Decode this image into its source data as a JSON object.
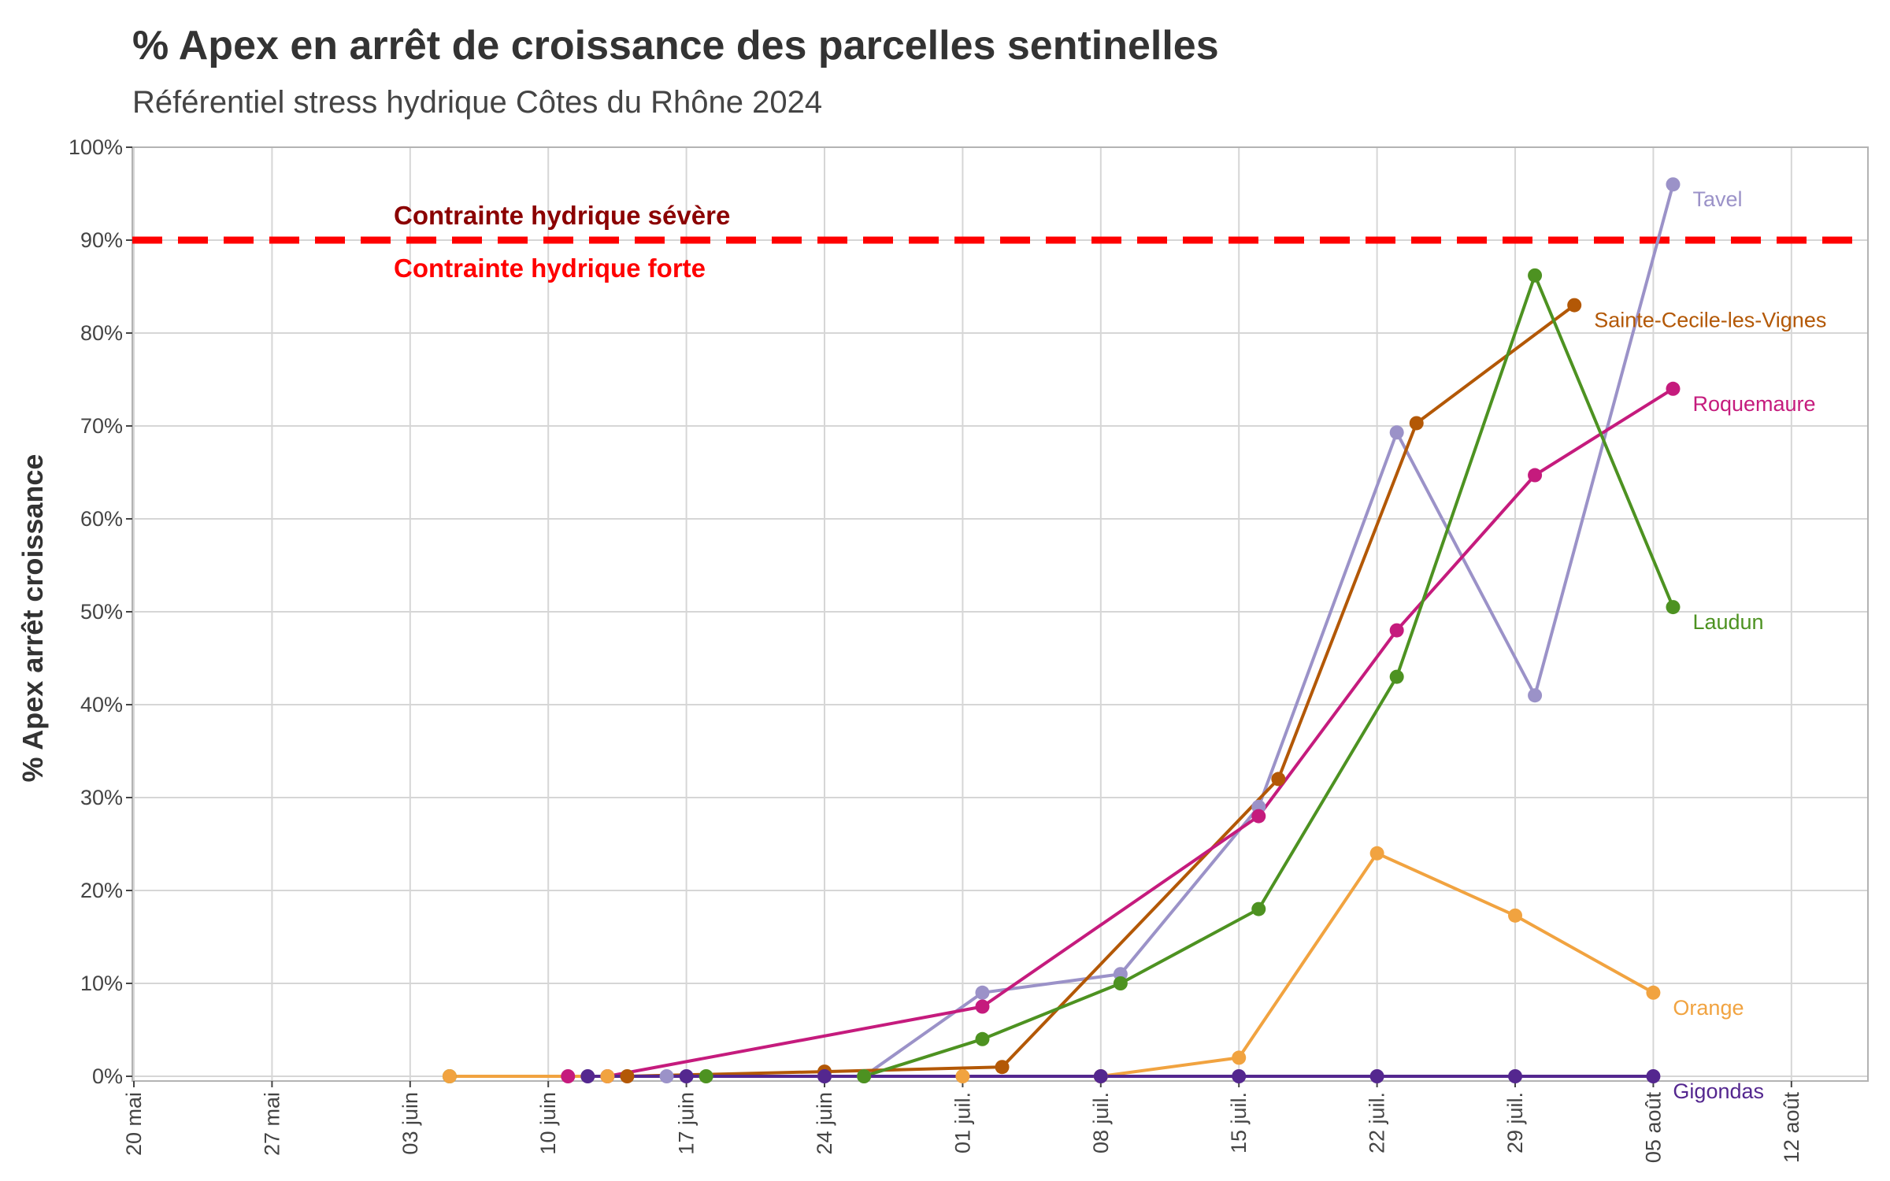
{
  "chart_data": {
    "type": "line",
    "title": "% Apex en arrêt de croissance des parcelles sentinelles",
    "subtitle": "Référentiel stress hydrique Côtes du Rhône 2024",
    "ylabel": "% Apex arrêt croissance",
    "xlabel": "",
    "grid": true,
    "xlim": [
      "2024-05-20",
      "2024-08-15"
    ],
    "ylim": [
      0,
      100
    ],
    "x_ticks": [
      {
        "date": "2024-05-20",
        "label": "20 mai"
      },
      {
        "date": "2024-05-27",
        "label": "27 mai"
      },
      {
        "date": "2024-06-03",
        "label": "03 juin"
      },
      {
        "date": "2024-06-10",
        "label": "10 juin"
      },
      {
        "date": "2024-06-17",
        "label": "17 juin"
      },
      {
        "date": "2024-06-24",
        "label": "24 juin"
      },
      {
        "date": "2024-07-01",
        "label": "01 juil."
      },
      {
        "date": "2024-07-08",
        "label": "08 juil."
      },
      {
        "date": "2024-07-15",
        "label": "15 juil."
      },
      {
        "date": "2024-07-22",
        "label": "22 juil."
      },
      {
        "date": "2024-07-29",
        "label": "29 juil."
      },
      {
        "date": "2024-08-05",
        "label": "05 août"
      },
      {
        "date": "2024-08-12",
        "label": "12 août"
      }
    ],
    "y_ticks": [
      {
        "value": 0,
        "label": "0%"
      },
      {
        "value": 10,
        "label": "10%"
      },
      {
        "value": 20,
        "label": "20%"
      },
      {
        "value": 30,
        "label": "30%"
      },
      {
        "value": 40,
        "label": "40%"
      },
      {
        "value": 50,
        "label": "50%"
      },
      {
        "value": 60,
        "label": "60%"
      },
      {
        "value": 70,
        "label": "70%"
      },
      {
        "value": 80,
        "label": "80%"
      },
      {
        "value": 90,
        "label": "90%"
      },
      {
        "value": 100,
        "label": "100%"
      }
    ],
    "threshold": {
      "value": 90,
      "color": "#ff0000",
      "label_above": "Contrainte hydrique sévère",
      "label_above_color": "#8b0000",
      "label_below": "Contrainte hydrique forte",
      "label_below_color": "#ff0000"
    },
    "series": [
      {
        "name": "Tavel",
        "color": "#9b92c8",
        "points": [
          {
            "x": "2024-06-16",
            "y": 0
          },
          {
            "x": "2024-06-24",
            "y": 0
          },
          {
            "x": "2024-06-26",
            "y": 0
          },
          {
            "x": "2024-07-02",
            "y": 9
          },
          {
            "x": "2024-07-09",
            "y": 11
          },
          {
            "x": "2024-07-16",
            "y": 29
          },
          {
            "x": "2024-07-23",
            "y": 69.3
          },
          {
            "x": "2024-07-30",
            "y": 41
          },
          {
            "x": "2024-08-06",
            "y": 96
          }
        ]
      },
      {
        "name": "Sainte-Cecile-les-Vignes",
        "color": "#b35806",
        "points": [
          {
            "x": "2024-06-14",
            "y": 0
          },
          {
            "x": "2024-06-24",
            "y": 0.5
          },
          {
            "x": "2024-07-03",
            "y": 1
          },
          {
            "x": "2024-07-17",
            "y": 32
          },
          {
            "x": "2024-07-24",
            "y": 70.3
          },
          {
            "x": "2024-08-01",
            "y": 83
          }
        ]
      },
      {
        "name": "Roquemaure",
        "color": "#c51b7d",
        "points": [
          {
            "x": "2024-06-11",
            "y": 0
          },
          {
            "x": "2024-06-13",
            "y": 0
          },
          {
            "x": "2024-07-02",
            "y": 7.5
          },
          {
            "x": "2024-07-16",
            "y": 28
          },
          {
            "x": "2024-07-23",
            "y": 48
          },
          {
            "x": "2024-07-30",
            "y": 64.7
          },
          {
            "x": "2024-08-06",
            "y": 74
          }
        ]
      },
      {
        "name": "Laudun",
        "color": "#4d9221",
        "points": [
          {
            "x": "2024-06-05",
            "y": 0
          },
          {
            "x": "2024-06-18",
            "y": 0
          },
          {
            "x": "2024-06-26",
            "y": 0
          },
          {
            "x": "2024-07-02",
            "y": 4
          },
          {
            "x": "2024-07-09",
            "y": 10
          },
          {
            "x": "2024-07-16",
            "y": 18
          },
          {
            "x": "2024-07-23",
            "y": 43
          },
          {
            "x": "2024-07-30",
            "y": 86.2
          },
          {
            "x": "2024-08-06",
            "y": 50.5
          }
        ]
      },
      {
        "name": "Orange",
        "color": "#f1a340",
        "points": [
          {
            "x": "2024-06-05",
            "y": 0
          },
          {
            "x": "2024-06-13",
            "y": 0
          },
          {
            "x": "2024-07-01",
            "y": 0
          },
          {
            "x": "2024-07-08",
            "y": 0
          },
          {
            "x": "2024-07-15",
            "y": 2
          },
          {
            "x": "2024-07-22",
            "y": 24
          },
          {
            "x": "2024-07-29",
            "y": 17.3
          },
          {
            "x": "2024-08-05",
            "y": 9
          }
        ]
      },
      {
        "name": "Gigondas",
        "color": "#54278f",
        "points": [
          {
            "x": "2024-06-12",
            "y": 0
          },
          {
            "x": "2024-06-17",
            "y": 0
          },
          {
            "x": "2024-06-24",
            "y": 0
          },
          {
            "x": "2024-07-08",
            "y": 0
          },
          {
            "x": "2024-07-15",
            "y": 0
          },
          {
            "x": "2024-07-22",
            "y": 0
          },
          {
            "x": "2024-07-29",
            "y": 0
          },
          {
            "x": "2024-08-05",
            "y": 0
          }
        ]
      }
    ]
  }
}
